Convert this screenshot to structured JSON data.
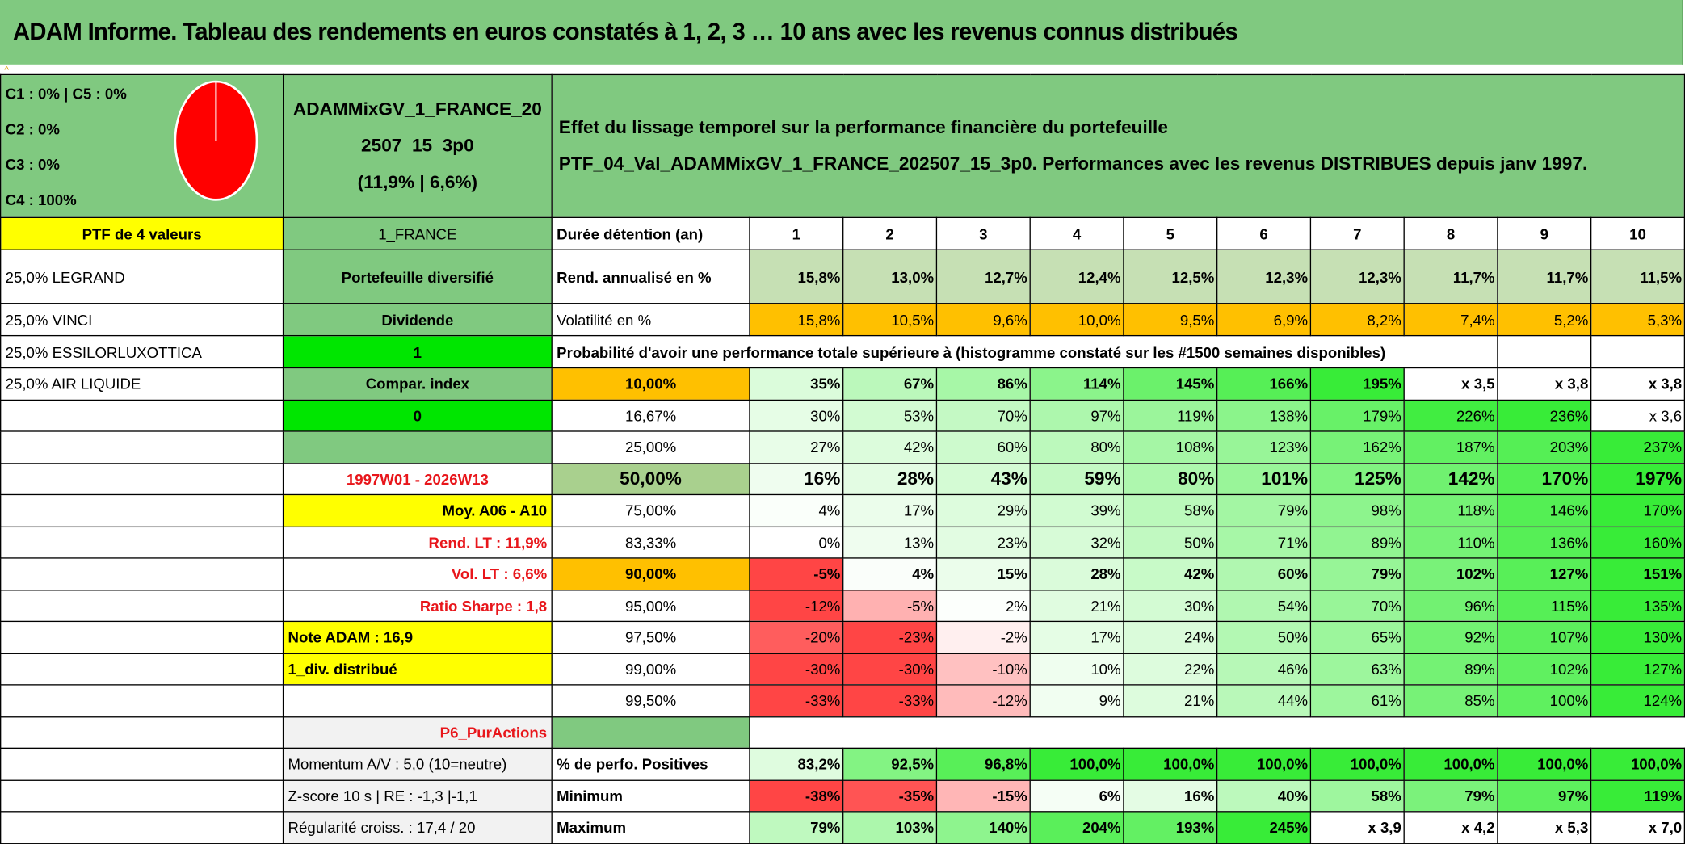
{
  "title": "ADAM Informe. Tableau des rendements en euros constatés à 1, 2, 3 … 10 ans avec les revenus connus distribués",
  "header": {
    "composition": [
      "C1 : 0% | C5 : 0%",
      "C2 : 0%",
      "C3 : 0%",
      "C4 : 100%"
    ],
    "pie_color": "#FF0000",
    "name_line1": "ADAMMixGV_1_FRANCE_20",
    "name_line2": "2507_15_3p0",
    "stats": "(11,9% | 6,6%)",
    "description_line1": "Effet du lissage temporel sur la performance financière du portefeuille",
    "description_line2": "PTF_04_Val_ADAMMixGV_1_FRANCE_202507_15_3p0. Performances avec les revenus DISTRIBUES depuis janv 1997."
  },
  "col_a": [
    "PTF de 4 valeurs",
    "25,0% LEGRAND",
    "25,0% VINCI",
    "25,0% ESSILORLUXOTTICA",
    "25,0% AIR LIQUIDE",
    "",
    "",
    "",
    "",
    "",
    "",
    "",
    "",
    "",
    "",
    "",
    "",
    "",
    ""
  ],
  "col_b": [
    "1_FRANCE",
    "Portefeuille diversifié",
    "Dividende",
    "1",
    "Compar. index",
    "0",
    "",
    "1997W01 - 2026W13",
    "Moy. A06 - A10",
    "Rend. LT : 11,9%",
    "Vol. LT : 6,6%",
    "Ratio Sharpe : 1,8",
    "Note ADAM : 16,9",
    "1_div. distribué",
    "",
    "P6_PurActions",
    "Momentum A/V : 5,0 (10=neutre)",
    "Z-score 10 s | RE : -1,3 |-1,1",
    "Régularité croiss. : 17,4 / 20"
  ],
  "col_c": [
    "Durée détention (an)",
    "Rend. annualisé en %",
    "Volatilité en %",
    "",
    "10,00%",
    "16,67%",
    "25,00%",
    "50,00%",
    "75,00%",
    "83,33%",
    "90,00%",
    "95,00%",
    "97,50%",
    "99,00%",
    "99,50%",
    "",
    "% de perfo. Positives",
    "Minimum",
    "Maximum"
  ],
  "probability_title": "Probabilité d'avoir une performance totale supérieure à (histogramme constaté sur les #1500 semaines disponibles)",
  "values": {
    "0": [
      "1",
      "2",
      "3",
      "4",
      "5",
      "6",
      "7",
      "8",
      "9",
      "10"
    ],
    "1": [
      "15,8%",
      "13,0%",
      "12,7%",
      "12,4%",
      "12,5%",
      "12,3%",
      "12,3%",
      "11,7%",
      "11,7%",
      "11,5%"
    ],
    "2": [
      "15,8%",
      "10,5%",
      "9,6%",
      "10,0%",
      "9,5%",
      "6,9%",
      "8,2%",
      "7,4%",
      "5,2%",
      "5,3%"
    ],
    "4": [
      "35%",
      "67%",
      "86%",
      "114%",
      "145%",
      "166%",
      "195%",
      "x 3,5",
      "x 3,8",
      "x 3,8"
    ],
    "5": [
      "30%",
      "53%",
      "70%",
      "97%",
      "119%",
      "138%",
      "179%",
      "226%",
      "236%",
      "x 3,6"
    ],
    "6": [
      "27%",
      "42%",
      "60%",
      "80%",
      "108%",
      "123%",
      "162%",
      "187%",
      "203%",
      "237%"
    ],
    "7": [
      "16%",
      "28%",
      "43%",
      "59%",
      "80%",
      "101%",
      "125%",
      "142%",
      "170%",
      "197%"
    ],
    "8": [
      "4%",
      "17%",
      "29%",
      "39%",
      "58%",
      "79%",
      "98%",
      "118%",
      "146%",
      "170%"
    ],
    "9": [
      "0%",
      "13%",
      "23%",
      "32%",
      "50%",
      "71%",
      "89%",
      "110%",
      "136%",
      "160%"
    ],
    "10": [
      "-5%",
      "4%",
      "15%",
      "28%",
      "42%",
      "60%",
      "79%",
      "102%",
      "127%",
      "151%"
    ],
    "11": [
      "-12%",
      "-5%",
      "2%",
      "21%",
      "30%",
      "54%",
      "70%",
      "96%",
      "115%",
      "135%"
    ],
    "12": [
      "-20%",
      "-23%",
      "-2%",
      "17%",
      "24%",
      "50%",
      "65%",
      "92%",
      "107%",
      "130%"
    ],
    "13": [
      "-30%",
      "-30%",
      "-10%",
      "10%",
      "22%",
      "46%",
      "63%",
      "89%",
      "102%",
      "127%"
    ],
    "14": [
      "-33%",
      "-33%",
      "-12%",
      "9%",
      "21%",
      "44%",
      "61%",
      "85%",
      "100%",
      "124%"
    ],
    "16": [
      "83,2%",
      "92,5%",
      "96,8%",
      "100,0%",
      "100,0%",
      "100,0%",
      "100,0%",
      "100,0%",
      "100,0%",
      "100,0%"
    ],
    "17": [
      "-38%",
      "-35%",
      "-15%",
      "6%",
      "16%",
      "40%",
      "58%",
      "79%",
      "97%",
      "119%"
    ],
    "18": [
      "79%",
      "103%",
      "140%",
      "204%",
      "193%",
      "245%",
      "x 3,9",
      "x 4,2",
      "x 5,3",
      "x 7,0"
    ]
  },
  "colors": {
    "header_green": "#80C980",
    "bright_green": "#00E600",
    "yellow": "#FFFF00",
    "orange": "#FFC000",
    "heat_positive": "#2EEB2E",
    "heat_negative": "#FF3B3B",
    "red_text": "#E8161B"
  }
}
